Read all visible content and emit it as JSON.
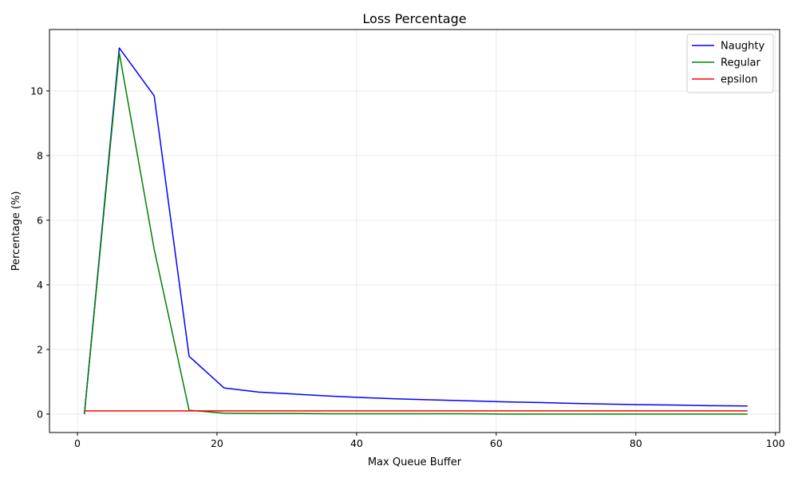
{
  "chart_data": {
    "type": "line",
    "title": "Loss Percentage",
    "xlabel": "Max Queue Buffer",
    "ylabel": "Percentage (%)",
    "xlim": [
      -4,
      100.6
    ],
    "ylim": [
      -0.57,
      11.9
    ],
    "xticks": [
      0,
      20,
      40,
      60,
      80,
      100
    ],
    "yticks": [
      0,
      2,
      4,
      6,
      8,
      10
    ],
    "grid": true,
    "legend_position": "top-right",
    "series": [
      {
        "name": "Naughty",
        "color": "#0000ff",
        "x": [
          1,
          6,
          11,
          16,
          21,
          26,
          31,
          36,
          41,
          46,
          51,
          56,
          61,
          66,
          71,
          76,
          81,
          86,
          91,
          96
        ],
        "values": [
          0.0,
          11.33,
          9.85,
          1.79,
          0.81,
          0.68,
          0.62,
          0.56,
          0.51,
          0.47,
          0.44,
          0.41,
          0.38,
          0.36,
          0.33,
          0.31,
          0.29,
          0.28,
          0.26,
          0.25
        ]
      },
      {
        "name": "Regular",
        "color": "#008000",
        "x": [
          1,
          6,
          11,
          16,
          21,
          26,
          31,
          36,
          41,
          46,
          51,
          56,
          61,
          66,
          71,
          76,
          81,
          86,
          91,
          96
        ],
        "values": [
          0.0,
          11.18,
          5.1,
          0.12,
          0.03,
          0.02,
          0.02,
          0.01,
          0.01,
          0.01,
          0.01,
          0.01,
          0.0,
          0.0,
          0.0,
          0.0,
          0.0,
          0.0,
          0.0,
          0.0
        ]
      },
      {
        "name": "epsilon",
        "color": "#ff0000",
        "x": [
          1,
          96
        ],
        "values": [
          0.1,
          0.1
        ]
      }
    ]
  }
}
